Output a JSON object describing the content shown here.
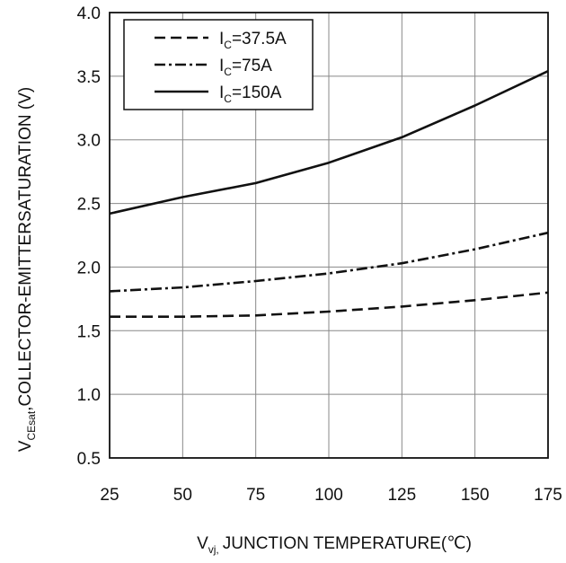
{
  "chart_data": {
    "type": "line",
    "xlabel": {
      "main": "V",
      "sub": "vj,",
      "rest": "JUNCTION TEMPERATURE(℃)"
    },
    "ylabel": {
      "main": "V",
      "sub": "CEsat",
      "rest": ",COLLECTOR-EMITTERSATURATION (V)"
    },
    "xlim": [
      25,
      175
    ],
    "ylim": [
      0.5,
      4.0
    ],
    "x_ticks": [
      "25",
      "50",
      "75",
      "100",
      "125",
      "150",
      "175"
    ],
    "y_ticks": [
      "0.5",
      "1.0",
      "1.5",
      "2.0",
      "2.5",
      "3.0",
      "3.5",
      "4.0"
    ],
    "grid": true,
    "legend_position": "top-left",
    "series": [
      {
        "name": "IC=37.5A",
        "legend": {
          "main": "I",
          "sub": "C",
          "rest": "=37.5A"
        },
        "dash": "dashed",
        "x": [
          25,
          50,
          75,
          100,
          125,
          150,
          175
        ],
        "y": [
          1.61,
          1.61,
          1.62,
          1.65,
          1.69,
          1.74,
          1.8
        ]
      },
      {
        "name": "IC=75A",
        "legend": {
          "main": "I",
          "sub": "C",
          "rest": "=75A"
        },
        "dash": "dashdot",
        "x": [
          25,
          50,
          75,
          100,
          125,
          150,
          175
        ],
        "y": [
          1.81,
          1.84,
          1.89,
          1.95,
          2.03,
          2.14,
          2.27
        ]
      },
      {
        "name": "IC=150A",
        "legend": {
          "main": "I",
          "sub": "C",
          "rest": "=150A"
        },
        "dash": "solid",
        "x": [
          25,
          50,
          75,
          100,
          125,
          150,
          175
        ],
        "y": [
          2.42,
          2.55,
          2.66,
          2.82,
          3.02,
          3.27,
          3.54
        ]
      }
    ]
  }
}
